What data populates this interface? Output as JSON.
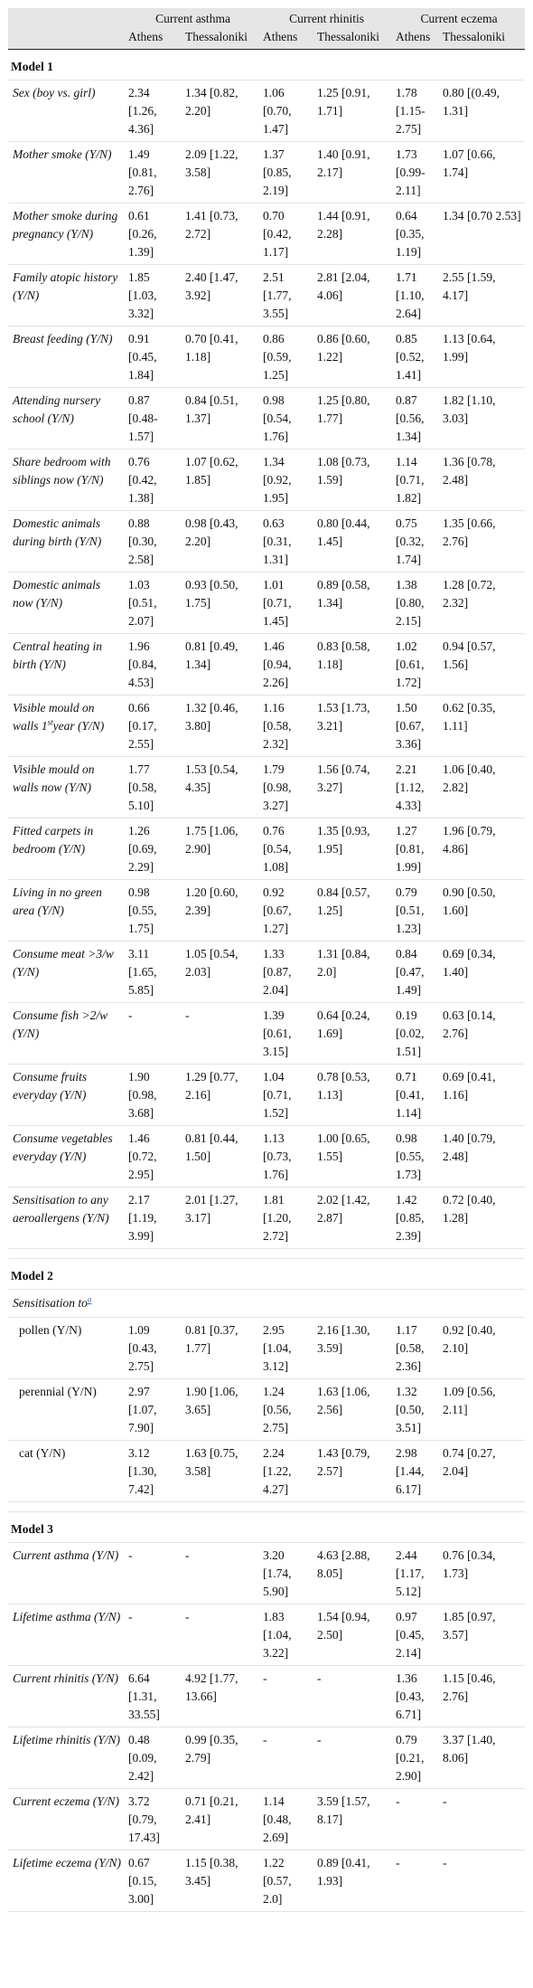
{
  "header": {
    "groups": [
      "Current asthma",
      "Current rhinitis",
      "Current eczema"
    ],
    "cities": [
      "Athens",
      "Thessaloniki",
      "Athens",
      "Thessaloniki",
      "Athens",
      "Thessaloniki"
    ]
  },
  "model1": {
    "title": "Model 1",
    "rows": [
      {
        "label": "Sex (boy vs. girl)",
        "v": [
          "2.34 [1.26, 4.36]",
          "1.34 [0.82, 2.20]",
          "1.06 [0.70, 1.47]",
          "1.25 [0.91, 1.71]",
          "1.78 [1.15-2.75]",
          "0.80 [(0.49, 1.31]"
        ]
      },
      {
        "label": "Mother smoke (Y/N)",
        "v": [
          "1.49 [0.81, 2.76]",
          "2.09 [1.22, 3.58]",
          "1.37 [0.85, 2.19]",
          "1.40 [0.91, 2.17]",
          "1.73 [0.99-2.11]",
          "1.07 [0.66, 1.74]"
        ]
      },
      {
        "label": "Mother smoke during pregnancy (Y/N)",
        "v": [
          "0.61 [0.26, 1.39]",
          "1.41 [0.73, 2.72]",
          "0.70 [0.42, 1.17]",
          "1.44 [0.91, 2.28]",
          "0.64 [0.35, 1.19]",
          "1.34 [0.70 2.53]"
        ]
      },
      {
        "label": "Family atopic history (Y/N)",
        "v": [
          "1.85 [1.03, 3.32]",
          "2.40 [1.47, 3.92]",
          "2.51 [1.77, 3.55]",
          "2.81 [2.04, 4.06]",
          "1.71 [1.10, 2.64]",
          "2.55 [1.59, 4.17]"
        ]
      },
      {
        "label": "Breast feeding (Y/N)",
        "v": [
          "0.91 [0.45, 1.84]",
          "0.70 [0.41, 1.18]",
          "0.86 [0.59, 1.25]",
          "0.86 [0.60, 1.22]",
          "0.85 [0.52, 1.41]",
          "1.13 [0.64, 1.99]"
        ]
      },
      {
        "label": "Attending nursery school (Y/N)",
        "v": [
          "0.87 [0.48-1.57]",
          "0.84 [0.51, 1.37]",
          "0.98 [0.54, 1.76]",
          "1.25 [0.80, 1.77]",
          "0.87 [0.56, 1.34]",
          "1.82 [1.10, 3.03]"
        ]
      },
      {
        "label": "Share bedroom with siblings now (Y/N)",
        "v": [
          "0.76 [0.42, 1.38]",
          "1.07 [0.62, 1.85]",
          "1.34 [0.92, 1.95]",
          "1.08 [0.73, 1.59]",
          "1.14 [0.71, 1.82]",
          "1.36 [0.78, 2.48]"
        ]
      },
      {
        "label": "Domestic animals during birth (Y/N)",
        "v": [
          "0.88 [0.30, 2.58]",
          "0.98 [0.43, 2.20]",
          "0.63 [0.31, 1.31]",
          "0.80 [0.44, 1.45]",
          "0.75 [0.32, 1.74]",
          "1.35 [0.66, 2.76]"
        ]
      },
      {
        "label": "Domestic animals now (Y/N)",
        "v": [
          "1.03 [0.51, 2.07]",
          "0.93 [0.50, 1.75]",
          "1.01 [0.71, 1.45]",
          "0.89 [0.58, 1.34]",
          "1.38 [0.80, 2.15]",
          "1.28 [0.72, 2.32]"
        ]
      },
      {
        "label": "Central heating in birth (Y/N)",
        "v": [
          "1.96 [0.84, 4.53]",
          "0.81 [0.49, 1.34]",
          "1.46 [0.94, 2.26]",
          "0.83 [0.58, 1.18]",
          "1.02 [0.61, 1.72]",
          "0.94 [0.57, 1.56]"
        ]
      },
      {
        "label": "Visible mould on walls 1",
        "sup": "st",
        "label_tail": "year (Y/N)",
        "v": [
          "0.66 [0.17, 2.55]",
          "1.32 [0.46, 3.80]",
          "1.16 [0.58, 2.32]",
          "1.53 [1.73, 3.21]",
          "1.50 [0.67, 3.36]",
          "0.62 [0.35, 1.11]"
        ]
      },
      {
        "label": "Visible mould on walls now (Y/N)",
        "v": [
          "1.77 [0.58, 5.10]",
          "1.53 [0.54, 4.35]",
          "1.79 [0.98, 3.27]",
          "1.56 [0.74, 3.27]",
          "2.21 [1.12, 4.33]",
          "1.06 [0.40, 2.82]"
        ]
      },
      {
        "label": "Fitted carpets in bedroom (Y/N)",
        "v": [
          "1.26 [0.69, 2.29]",
          "1.75 [1.06, 2.90]",
          "0.76 [0.54, 1.08]",
          "1.35 [0.93, 1.95]",
          "1.27 [0.81, 1.99]",
          "1.96 [0.79, 4.86]"
        ]
      },
      {
        "label": "Living in no green area (Y/N)",
        "v": [
          "0.98 [0.55, 1.75]",
          "1.20 [0.60, 2.39]",
          "0.92 [0.67, 1.27]",
          "0.84 [0.57, 1.25]",
          "0.79 [0.51, 1.23]",
          "0.90 [0.50, 1.60]"
        ]
      },
      {
        "label": "Consume meat >3/w (Y/N)",
        "v": [
          "3.11 [1.65, 5.85]",
          "1.05 [0.54, 2.03]",
          "1.33 [0.87, 2.04]",
          "1.31 [0.84, 2.0]",
          "0.84 [0.47, 1.49]",
          "0.69 [0.34, 1.40]"
        ]
      },
      {
        "label": "Consume fish >2/w (Y/N)",
        "v": [
          "-",
          "-",
          "1.39 [0.61, 3.15]",
          "0.64 [0.24, 1.69]",
          "0.19 [0.02, 1.51]",
          "0.63 [0.14, 2.76]"
        ]
      },
      {
        "label": "Consume fruits everyday (Y/N)",
        "v": [
          "1.90 [0.98, 3.68]",
          "1.29 [0.77, 2.16]",
          "1.04 [0.71, 1.52]",
          "0.78 [0.53, 1.13]",
          "0.71 [0.41, 1.14]",
          "0.69 [0.41, 1.16]"
        ]
      },
      {
        "label": "Consume vegetables everyday (Y/N)",
        "v": [
          "1.46 [0.72, 2.95]",
          "0.81 [0.44, 1.50]",
          "1.13 [0.73, 1.76]",
          "1.00 [0.65, 1.55]",
          "0.98 [0.55, 1.73]",
          "1.40 [0.79, 2.48]"
        ]
      },
      {
        "label": "Sensitisation to any aeroallergens (Y/N)",
        "v": [
          "2.17 [1.19, 3.99]",
          "2.01 [1.27, 3.17]",
          "1.81 [1.20, 2.72]",
          "2.02 [1.42, 2.87]",
          "1.42 [0.85, 2.39]",
          "0.72 [0.40, 1.28]"
        ]
      }
    ]
  },
  "model2": {
    "title": "Model 2",
    "subheading": "Sensitisation to",
    "footnote_mark": "a",
    "rows": [
      {
        "label": "pollen (Y/N)",
        "v": [
          "1.09 [0.43, 2.75]",
          "0.81 [0.37, 1.77]",
          "2.95 [1.04, 3.12]",
          "2.16 [1.30, 3.59]",
          "1.17 [0.58, 2.36]",
          "0.92 [0.40, 2.10]"
        ]
      },
      {
        "label": "perennial (Y/N)",
        "v": [
          "2.97 [1.07, 7.90]",
          "1.90 [1.06, 3.65]",
          "1.24 [0.56, 2.75]",
          "1.63 [1.06, 2.56]",
          "1.32 [0.50, 3.51]",
          "1.09 [0.56, 2.11]"
        ]
      },
      {
        "label": "cat (Y/N)",
        "v": [
          "3.12 [1.30, 7.42]",
          "1.63 [0.75, 3.58]",
          "2.24 [1.22, 4.27]",
          "1.43 [0.79, 2.57]",
          "2.98 [1.44, 6.17]",
          "0.74 [0.27, 2.04]"
        ]
      }
    ]
  },
  "model3": {
    "title": "Model 3",
    "rows": [
      {
        "label": "Current asthma (Y/N)",
        "v": [
          "-",
          "-",
          "3.20 [1.74, 5.90]",
          "4.63 [2.88, 8.05]",
          "2.44 [1.17, 5.12]",
          "0.76 [0.34, 1.73]"
        ]
      },
      {
        "label": "Lifetime asthma (Y/N)",
        "v": [
          "-",
          "-",
          "1.83 [1.04, 3.22]",
          "1.54 [0.94, 2.50]",
          "0.97 [0.45, 2.14]",
          "1.85 [0.97, 3.57]"
        ]
      },
      {
        "label": "Current rhinitis (Y/N)",
        "v": [
          "6.64 [1.31, 33.55]",
          "4.92 [1.77, 13.66]",
          "-",
          "-",
          "1.36 [0.43, 6.71]",
          "1.15 [0.46, 2.76]"
        ]
      },
      {
        "label": "Lifetime rhinitis (Y/N)",
        "v": [
          "0.48 [0.09, 2.42]",
          "0.99 [0.35, 2.79]",
          "-",
          "-",
          "0.79 [0.21, 2.90]",
          "3.37 [1.40, 8.06]"
        ]
      },
      {
        "label": "Current eczema (Y/N)",
        "v": [
          "3.72 [0.79, 17.43]",
          "0.71 [0.21, 2.41]",
          "1.14 [0.48, 2.69]",
          "3.59 [1.57, 8.17]",
          "-",
          "-"
        ]
      },
      {
        "label": "Lifetime eczema (Y/N)",
        "v": [
          "0.67 [0.15, 3.00]",
          "1.15 [0.38, 3.45]",
          "1.22 [0.57, 2.0]",
          "0.89 [0.41, 1.93]",
          "-",
          "-"
        ]
      }
    ]
  }
}
